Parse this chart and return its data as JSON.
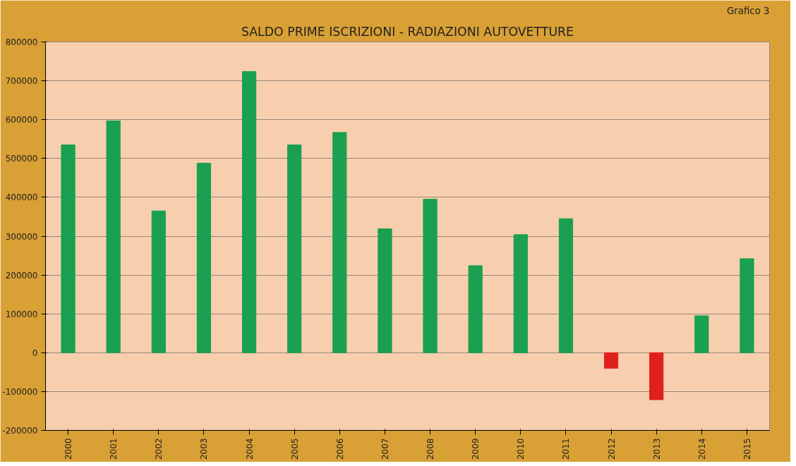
{
  "chart_data": {
    "type": "bar",
    "title": "SALDO PRIME ISCRIZIONI - RADIAZIONI AUTOVETTURE",
    "annotations": [
      "Grafico 3"
    ],
    "categories": [
      "2000",
      "2001",
      "2002",
      "2003",
      "2004",
      "2005",
      "2006",
      "2007",
      "2008",
      "2009",
      "2010",
      "2011",
      "2012",
      "2013",
      "2014",
      "2015"
    ],
    "values": [
      535000,
      597000,
      365000,
      488000,
      724000,
      535000,
      567000,
      319000,
      395000,
      224000,
      304000,
      345000,
      -40000,
      -121000,
      95000,
      242000
    ],
    "colors": [
      "#1aa050",
      "#1aa050",
      "#1aa050",
      "#1aa050",
      "#1aa050",
      "#1aa050",
      "#1aa050",
      "#1aa050",
      "#1aa050",
      "#1aa050",
      "#1aa050",
      "#1aa050",
      "#e0201e",
      "#e0201e",
      "#1aa050",
      "#1aa050"
    ],
    "ylim": [
      -200000,
      800000
    ],
    "yticks": [
      -200000,
      -100000,
      0,
      100000,
      200000,
      300000,
      400000,
      500000,
      600000,
      700000,
      800000
    ],
    "grid": "y"
  }
}
